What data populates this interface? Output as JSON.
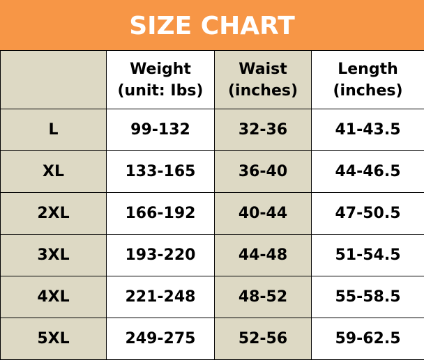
{
  "title": "SIZE CHART",
  "colors": {
    "header_bg": "#F79646",
    "shaded_column": "#DDD9C4",
    "white_column": "#FFFFFF"
  },
  "columns": [
    {
      "line1": "",
      "line2": ""
    },
    {
      "line1": "Weight",
      "line2": "(unit: Ibs)"
    },
    {
      "line1": "Waist",
      "line2": "(inches)"
    },
    {
      "line1": "Length",
      "line2": "(inches)"
    }
  ],
  "rows": [
    [
      "L",
      "99-132",
      "32-36",
      "41-43.5"
    ],
    [
      "XL",
      "133-165",
      "36-40",
      "44-46.5"
    ],
    [
      "2XL",
      "166-192",
      "40-44",
      "47-50.5"
    ],
    [
      "3XL",
      "193-220",
      "44-48",
      "51-54.5"
    ],
    [
      "4XL",
      "221-248",
      "48-52",
      "55-58.5"
    ],
    [
      "5XL",
      "249-275",
      "52-56",
      "59-62.5"
    ]
  ]
}
